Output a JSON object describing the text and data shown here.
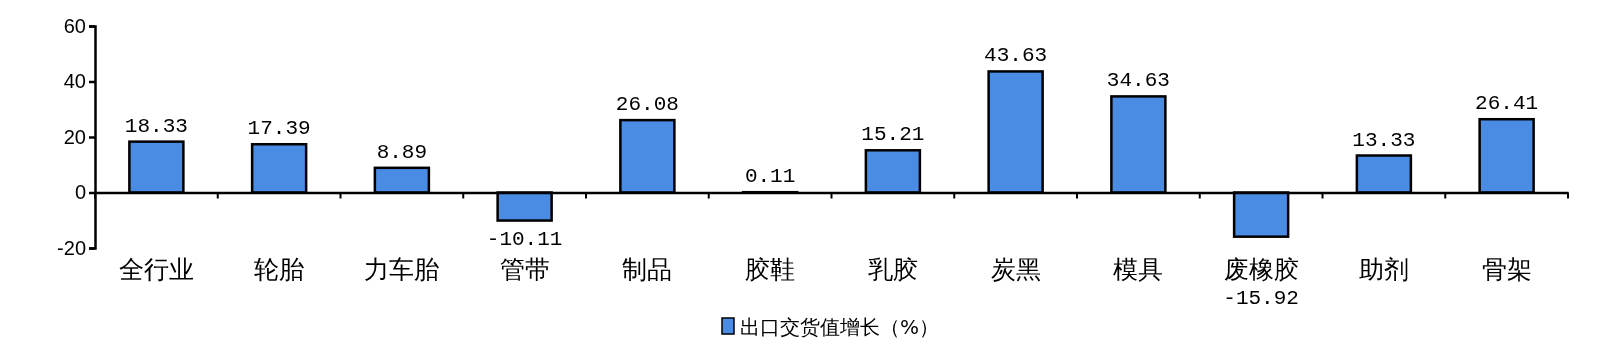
{
  "chart_data": {
    "type": "bar",
    "categories": [
      "全行业",
      "轮胎",
      "力车胎",
      "管带",
      "制品",
      "胶鞋",
      "乳胶",
      "炭黑",
      "模具",
      "废橡胶",
      "助剂",
      "骨架"
    ],
    "series": [
      {
        "name": "出口交货值增长（%）",
        "color": "#4a8be3",
        "values": [
          18.33,
          17.39,
          8.89,
          -10.11,
          26.08,
          0.11,
          15.21,
          43.63,
          34.63,
          -15.92,
          13.33,
          26.41
        ]
      }
    ],
    "ylim": [
      -20,
      60
    ],
    "yticks": [
      -20,
      0,
      20,
      40,
      60
    ],
    "data_labels": true,
    "legend": "bottom",
    "grid": false
  }
}
